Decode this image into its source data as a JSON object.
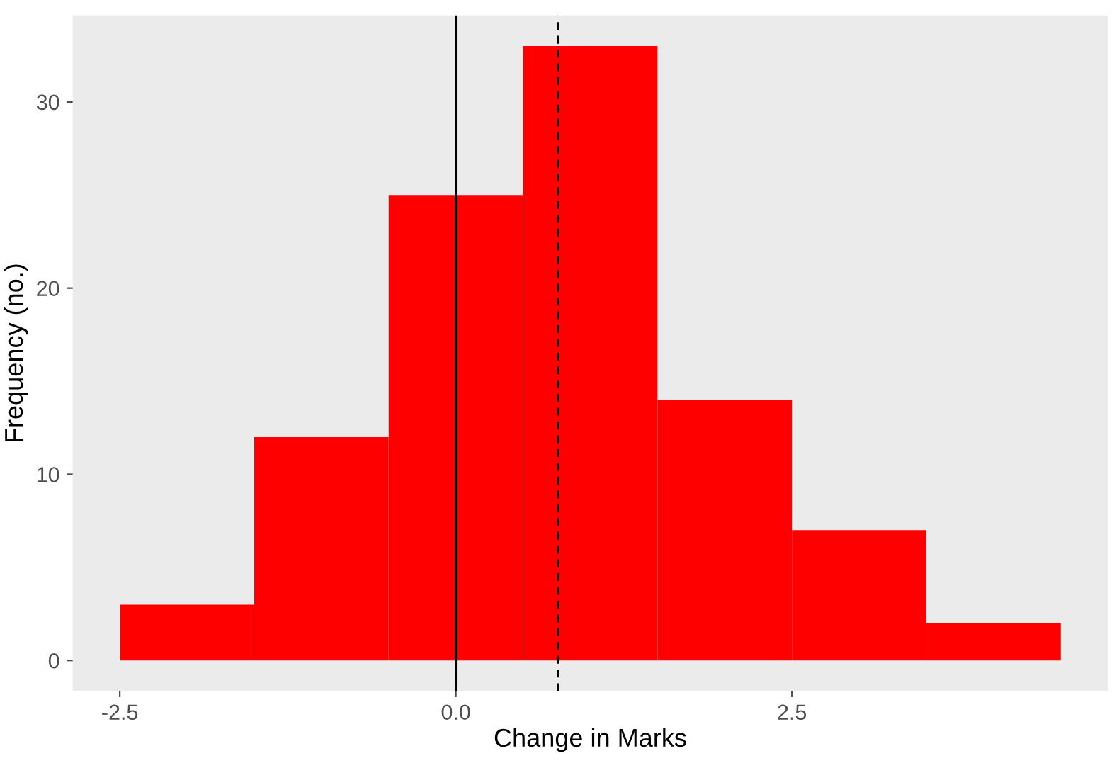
{
  "chart_data": {
    "type": "histogram",
    "xlabel": "Change in Marks",
    "ylabel": "Frequency (no.)",
    "bins": [
      -2.5,
      -1.5,
      -0.5,
      0.5,
      1.5,
      2.5,
      3.5,
      4.5
    ],
    "values": [
      3,
      12,
      25,
      33,
      14,
      7,
      2
    ],
    "color": "#ff0000",
    "xlim": [
      -2.85,
      4.85
    ],
    "ylim": [
      -1.65,
      34.65
    ],
    "xticks": [
      -2.5,
      {
        "value": 0,
        "label": "0.0"
      },
      2.5
    ],
    "yticks": [
      0,
      10,
      20,
      30
    ],
    "ref_lines": [
      {
        "axis": "x",
        "value": 0,
        "color": "#000000",
        "line_style": "solid"
      },
      {
        "axis": "x",
        "value": 0.76,
        "color": "#000000",
        "line_style": "dashed"
      }
    ],
    "grid": false
  }
}
